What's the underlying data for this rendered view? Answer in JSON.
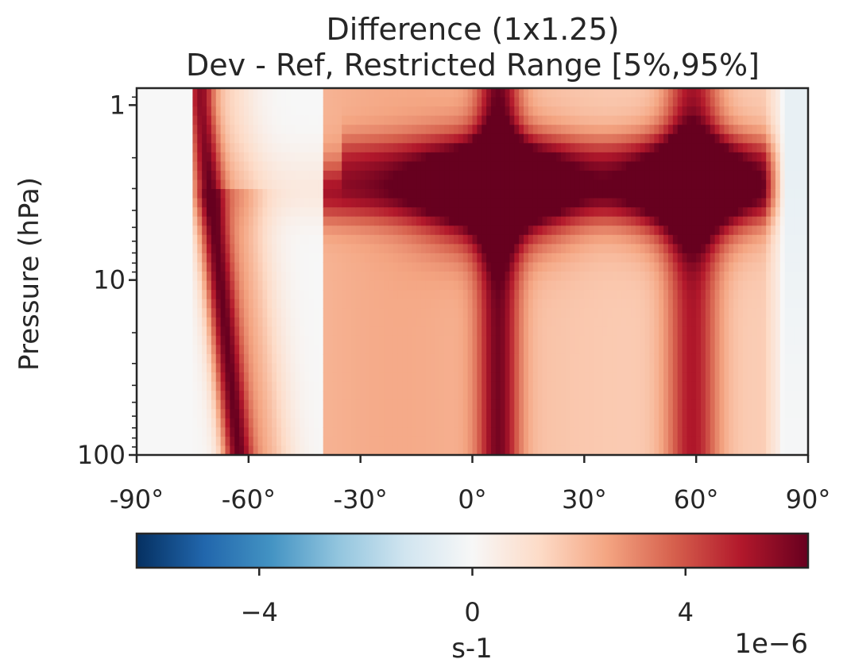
{
  "chart_data": {
    "type": "heatmap",
    "title": "Difference (1x1.25)",
    "subtitle": "Dev - Ref, Restricted Range [5%,95%]",
    "ylabel": "Pressure (hPa)",
    "xlabel": "",
    "xlim": [
      -90,
      90
    ],
    "ylim": [
      100,
      0.8
    ],
    "y_scale": "log",
    "x_ticks": [
      -90,
      -60,
      -30,
      0,
      30,
      60,
      90
    ],
    "x_tick_labels": [
      "-90°",
      "-60°",
      "-30°",
      "0°",
      "30°",
      "60°",
      "90°"
    ],
    "y_ticks": [
      1,
      10,
      100
    ],
    "y_tick_labels": [
      "1",
      "10",
      "100"
    ],
    "colormap": "RdBu_r",
    "colorbar": {
      "label": "s-1",
      "range": [
        -6.3,
        6.3
      ],
      "ticks": [
        -4,
        0,
        4
      ],
      "tick_labels": [
        "−4",
        "0",
        "4"
      ],
      "offset_text": "1e−6",
      "unit_scale": 1e-06
    },
    "features": [
      {
        "lat": -68,
        "description": "narrow strong positive band tilting with height"
      },
      {
        "lat": 7,
        "pressure_peak": 3,
        "description": "strong positive maximum"
      },
      {
        "lat": 58,
        "pressure_peak": 3,
        "description": "strong positive maximum"
      },
      {
        "lat": 85,
        "description": "near zero to slightly negative"
      }
    ]
  },
  "colors": {
    "text": "#262626",
    "axis": "#262626",
    "cmap_neg_end": "#053061",
    "cmap_mid": "#f7f7f7",
    "cmap_pos_end": "#67001f"
  }
}
